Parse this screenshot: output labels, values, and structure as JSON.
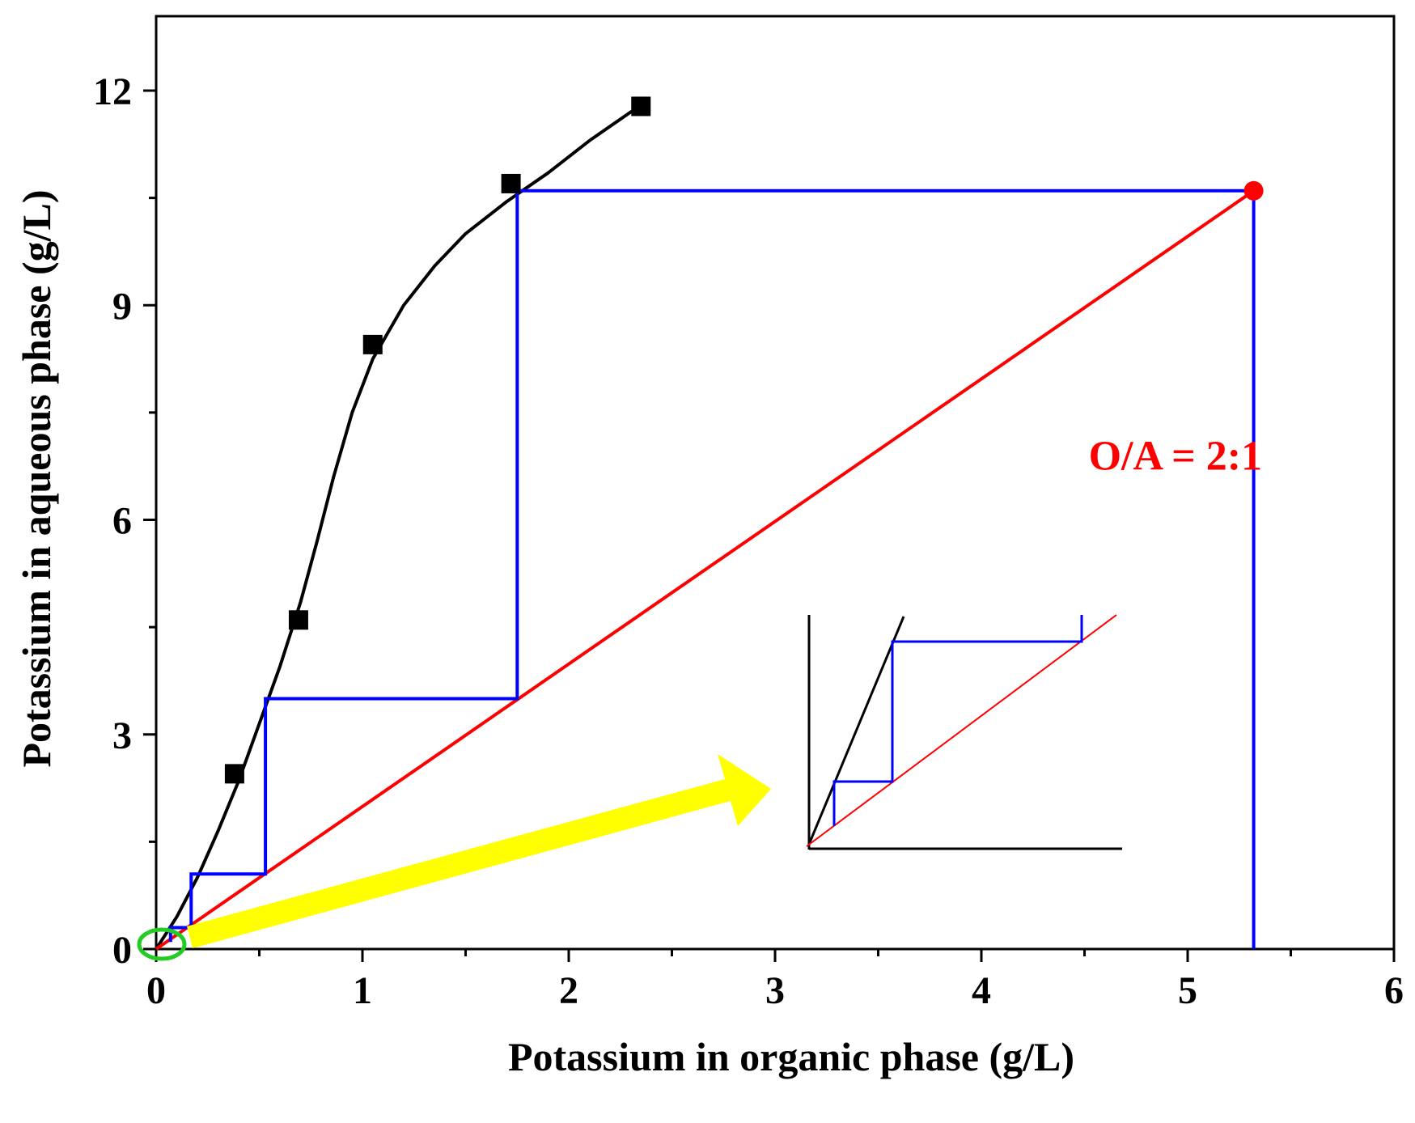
{
  "chart_data": {
    "type": "scatter",
    "title": "",
    "xlabel": "Potassium in organic phase (g/L)",
    "ylabel": "Potassium in aqueous phase (g/L)",
    "xlim": [
      0,
      6
    ],
    "ylim": [
      0,
      13
    ],
    "x_ticks": [
      "0",
      "1",
      "2",
      "3",
      "4",
      "5",
      "6"
    ],
    "y_ticks": [
      "0",
      "3",
      "6",
      "9",
      "12"
    ],
    "x_tick_values": [
      0,
      1,
      2,
      3,
      4,
      5,
      6
    ],
    "y_tick_values": [
      0,
      3,
      6,
      9,
      12
    ],
    "grid": false,
    "series": [
      {
        "name": "Equilibrium data",
        "type": "scatter",
        "marker": "square",
        "color": "#000000",
        "points": [
          [
            0.38,
            2.45
          ],
          [
            0.69,
            4.6
          ],
          [
            1.05,
            8.45
          ],
          [
            1.72,
            10.7
          ],
          [
            2.35,
            11.78
          ]
        ]
      },
      {
        "name": "Fitted isotherm",
        "type": "line",
        "color": "#000000",
        "points": [
          [
            0,
            0
          ],
          [
            0.1,
            0.45
          ],
          [
            0.2,
            1.0
          ],
          [
            0.3,
            1.65
          ],
          [
            0.4,
            2.35
          ],
          [
            0.5,
            3.15
          ],
          [
            0.6,
            3.95
          ],
          [
            0.7,
            4.85
          ],
          [
            0.78,
            5.7
          ],
          [
            0.86,
            6.6
          ],
          [
            0.95,
            7.5
          ],
          [
            1.05,
            8.25
          ],
          [
            1.2,
            9.0
          ],
          [
            1.35,
            9.55
          ],
          [
            1.5,
            10.0
          ],
          [
            1.7,
            10.45
          ],
          [
            1.9,
            10.85
          ],
          [
            2.1,
            11.3
          ],
          [
            2.3,
            11.7
          ],
          [
            2.35,
            11.78
          ]
        ]
      },
      {
        "name": "Operating line",
        "type": "line",
        "color": "#ff0000",
        "points": [
          [
            0,
            0
          ],
          [
            5.32,
            10.6
          ]
        ]
      },
      {
        "name": "McCabe-Thiele stages",
        "type": "line",
        "color": "#0000ff",
        "points": [
          [
            5.32,
            0
          ],
          [
            5.32,
            10.6
          ],
          [
            1.75,
            10.6
          ],
          [
            1.75,
            3.5
          ],
          [
            0.53,
            3.5
          ],
          [
            0.53,
            1.05
          ],
          [
            0.17,
            1.05
          ],
          [
            0.17,
            0.3
          ],
          [
            0.07,
            0.3
          ],
          [
            0.07,
            0.1
          ]
        ]
      },
      {
        "name": "Feed point",
        "type": "scatter",
        "marker": "circle",
        "color": "#ff0000",
        "points": [
          [
            5.32,
            10.6
          ]
        ]
      }
    ],
    "annotations": [
      {
        "text": "O/A = 2:1",
        "x": 4.52,
        "y": 6.7,
        "color": "#ff0000"
      }
    ],
    "zoom_inset": {
      "description": "enlarged view of the origin region",
      "circle_color": "#22cc22",
      "arrow_color": "#ffff00"
    }
  }
}
